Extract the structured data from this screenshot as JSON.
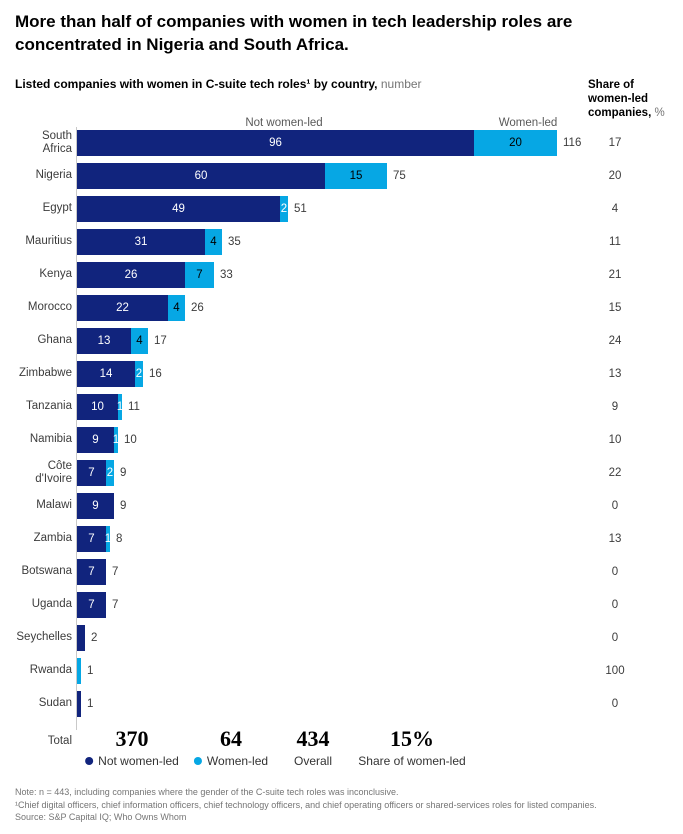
{
  "title": "More than half of companies with women in tech leadership roles are concentrated in Nigeria and South Africa.",
  "subtitle": {
    "bold": "Listed companies with women in C-suite tech roles¹ by country,",
    "unit": "number"
  },
  "share_header": {
    "line1": "Share of",
    "line2": "women-led",
    "line3_bold": "companies,",
    "line3_unit": "%"
  },
  "axis_headers": {
    "not_women_led": "Not women-led",
    "women_led": "Women-led"
  },
  "colors": {
    "navy": "#11247D",
    "cyan": "#06A7E4"
  },
  "chart_data": {
    "type": "bar",
    "orientation": "horizontal",
    "stacked": true,
    "series": [
      "Not women-led",
      "Women-led"
    ],
    "value_unit": "number of listed companies",
    "rows": [
      {
        "country": "South Africa",
        "label": "South\nAfrica",
        "not_women_led": 96,
        "women_led": 20,
        "overall": 116,
        "share_women_led_pct": 17,
        "labels": {
          "navy": "96",
          "cyan": "20",
          "total": "116",
          "share": "17"
        }
      },
      {
        "country": "Nigeria",
        "label": "Nigeria",
        "not_women_led": 60,
        "women_led": 15,
        "overall": 75,
        "share_women_led_pct": 20,
        "labels": {
          "navy": "60",
          "cyan": "15",
          "total": "75",
          "share": "20"
        }
      },
      {
        "country": "Egypt",
        "label": "Egypt",
        "not_women_led": 49,
        "women_led": 2,
        "overall": 51,
        "share_women_led_pct": 4,
        "labels": {
          "navy": "49",
          "cyan": "2",
          "total": "51",
          "share": "4"
        }
      },
      {
        "country": "Mauritius",
        "label": "Mauritius",
        "not_women_led": 31,
        "women_led": 4,
        "overall": 35,
        "share_women_led_pct": 11,
        "labels": {
          "navy": "31",
          "cyan": "4",
          "total": "35",
          "share": "11"
        }
      },
      {
        "country": "Kenya",
        "label": "Kenya",
        "not_women_led": 26,
        "women_led": 7,
        "overall": 33,
        "share_women_led_pct": 21,
        "labels": {
          "navy": "26",
          "cyan": "7",
          "total": "33",
          "share": "21"
        }
      },
      {
        "country": "Morocco",
        "label": "Morocco",
        "not_women_led": 22,
        "women_led": 4,
        "overall": 26,
        "share_women_led_pct": 15,
        "labels": {
          "navy": "22",
          "cyan": "4",
          "total": "26",
          "share": "15"
        }
      },
      {
        "country": "Ghana",
        "label": "Ghana",
        "not_women_led": 13,
        "women_led": 4,
        "overall": 17,
        "share_women_led_pct": 24,
        "labels": {
          "navy": "13",
          "cyan": "4",
          "total": "17",
          "share": "24"
        }
      },
      {
        "country": "Zimbabwe",
        "label": "Zimbabwe",
        "not_women_led": 14,
        "women_led": 2,
        "overall": 16,
        "share_women_led_pct": 13,
        "labels": {
          "navy": "14",
          "cyan": "2",
          "total": "16",
          "share": "13"
        }
      },
      {
        "country": "Tanzania",
        "label": "Tanzania",
        "not_women_led": 10,
        "women_led": 1,
        "overall": 11,
        "share_women_led_pct": 9,
        "labels": {
          "navy": "10",
          "cyan": "1",
          "total": "11",
          "share": "9"
        }
      },
      {
        "country": "Namibia",
        "label": "Namibia",
        "not_women_led": 9,
        "women_led": 1,
        "overall": 10,
        "share_women_led_pct": 10,
        "labels": {
          "navy": "9",
          "cyan": "1",
          "total": "10",
          "share": "10"
        }
      },
      {
        "country": "Côte d'Ivoire",
        "label": "Côte\nd'Ivoire",
        "not_women_led": 7,
        "women_led": 2,
        "overall": 9,
        "share_women_led_pct": 22,
        "labels": {
          "navy": "7",
          "cyan": "2",
          "total": "9",
          "share": "22"
        }
      },
      {
        "country": "Malawi",
        "label": "Malawi",
        "not_women_led": 9,
        "women_led": 0,
        "overall": 9,
        "share_women_led_pct": 0,
        "labels": {
          "navy": "9",
          "cyan": null,
          "total": "9",
          "share": "0"
        }
      },
      {
        "country": "Zambia",
        "label": "Zambia",
        "not_women_led": 7,
        "women_led": 1,
        "overall": 8,
        "share_women_led_pct": 13,
        "labels": {
          "navy": "7",
          "cyan": "1",
          "total": "8",
          "share": "13"
        }
      },
      {
        "country": "Botswana",
        "label": "Botswana",
        "not_women_led": 7,
        "women_led": 0,
        "overall": 7,
        "share_women_led_pct": 0,
        "labels": {
          "navy": "7",
          "cyan": null,
          "total": "7",
          "share": "0"
        }
      },
      {
        "country": "Uganda",
        "label": "Uganda",
        "not_women_led": 7,
        "women_led": 0,
        "overall": 7,
        "share_women_led_pct": 0,
        "labels": {
          "navy": "7",
          "cyan": null,
          "total": "7",
          "share": "0"
        }
      },
      {
        "country": "Seychelles",
        "label": "Seychelles",
        "not_women_led": 2,
        "women_led": 0,
        "overall": 2,
        "share_women_led_pct": 0,
        "labels": {
          "navy": null,
          "cyan": null,
          "total": "2",
          "share": "0"
        }
      },
      {
        "country": "Rwanda",
        "label": "Rwanda",
        "not_women_led": 0,
        "women_led": 1,
        "overall": 1,
        "share_women_led_pct": 100,
        "labels": {
          "navy": null,
          "cyan": null,
          "total": "1",
          "share": "100"
        }
      },
      {
        "country": "Sudan",
        "label": "Sudan",
        "not_women_led": 1,
        "women_led": 0,
        "overall": 1,
        "share_women_led_pct": 0,
        "labels": {
          "navy": null,
          "cyan": null,
          "total": "1",
          "share": "0"
        }
      }
    ],
    "totals": {
      "not_women_led": 370,
      "women_led": 64,
      "overall": 434,
      "share_women_led": "15%"
    }
  },
  "total_row": {
    "label": "Total",
    "groups": [
      {
        "value": "370",
        "label": "Not women-led",
        "dot": "navy"
      },
      {
        "value": "64",
        "label": "Women-led",
        "dot": "cyan"
      },
      {
        "value": "434",
        "label": "Overall",
        "dot": null
      },
      {
        "value": "15%",
        "label": "Share of women-led",
        "dot": null
      }
    ]
  },
  "footnotes": [
    "Note: n = 443, including companies where the gender of the C-suite tech roles was inconclusive.",
    "¹Chief digital officers, chief information officers, chief technology officers, and chief operating officers or shared-services roles for listed companies.",
    "Source: S&P Capital IQ; Who Owns Whom"
  ]
}
